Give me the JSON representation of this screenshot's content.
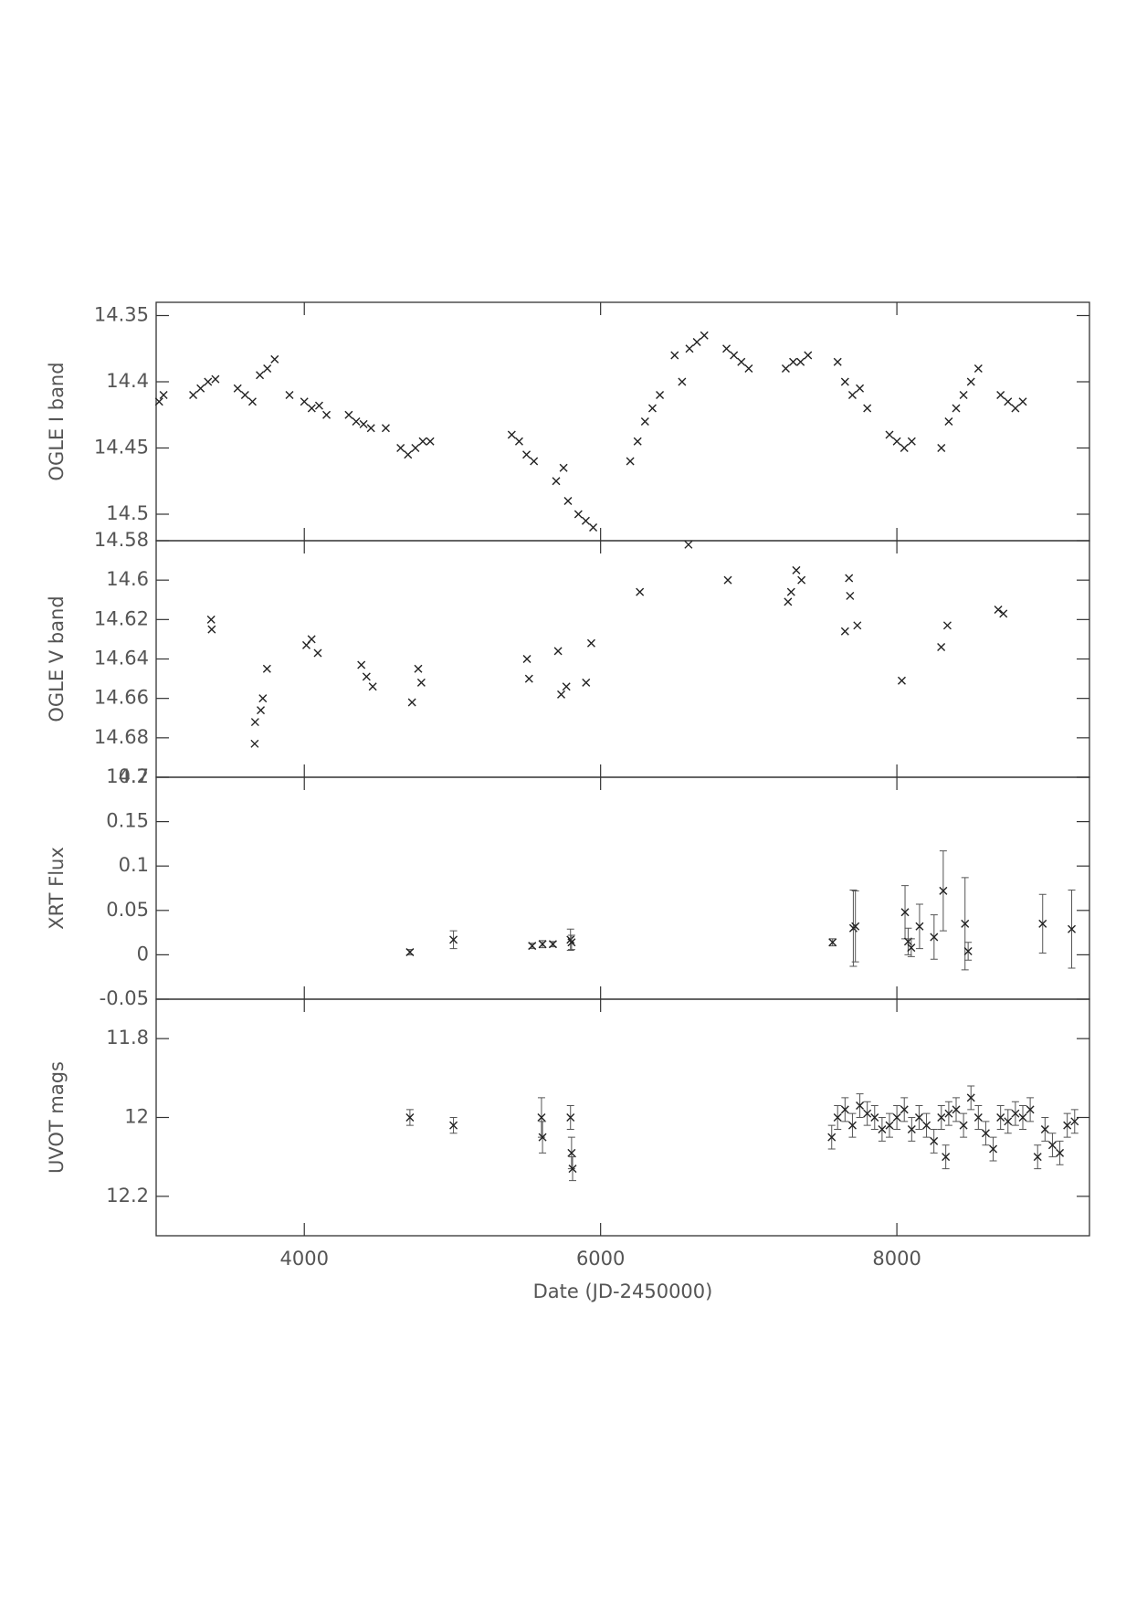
{
  "chart_data": [
    {
      "type": "scatter",
      "ylabel": "OGLE I band",
      "color": "#222",
      "invert_y": true,
      "xlim": [
        3000,
        9300
      ],
      "xticks": [
        4000,
        6000,
        8000
      ],
      "ylim": [
        14.34,
        14.52
      ],
      "yticks": [
        14.35,
        14.4,
        14.45,
        14.5
      ],
      "x": [
        3020,
        3050,
        3250,
        3300,
        3350,
        3400,
        3550,
        3600,
        3650,
        3700,
        3750,
        3800,
        3900,
        4000,
        4050,
        4100,
        4150,
        4300,
        4350,
        4400,
        4450,
        4550,
        4650,
        4700,
        4750,
        4800,
        4850,
        5400,
        5450,
        5500,
        5550,
        5700,
        5750,
        5780,
        5850,
        5900,
        5950,
        6200,
        6250,
        6300,
        6350,
        6400,
        6500,
        6550,
        6600,
        6650,
        6700,
        6850,
        6900,
        6950,
        7000,
        7250,
        7300,
        7350,
        7400,
        7600,
        7650,
        7700,
        7750,
        7800,
        7950,
        8000,
        8050,
        8100,
        8300,
        8350,
        8400,
        8450,
        8500,
        8550,
        8700,
        8750,
        8800,
        8850
      ],
      "values": [
        14.415,
        14.41,
        14.41,
        14.405,
        14.4,
        14.398,
        14.405,
        14.41,
        14.415,
        14.395,
        14.39,
        14.383,
        14.41,
        14.415,
        14.42,
        14.418,
        14.425,
        14.425,
        14.43,
        14.432,
        14.435,
        14.435,
        14.45,
        14.455,
        14.45,
        14.445,
        14.445,
        14.44,
        14.445,
        14.455,
        14.46,
        14.475,
        14.465,
        14.49,
        14.5,
        14.505,
        14.51,
        14.46,
        14.445,
        14.43,
        14.42,
        14.41,
        14.38,
        14.4,
        14.375,
        14.37,
        14.365,
        14.375,
        14.38,
        14.385,
        14.39,
        14.39,
        14.385,
        14.385,
        14.38,
        14.385,
        14.4,
        14.41,
        14.405,
        14.42,
        14.44,
        14.445,
        14.45,
        14.445,
        14.45,
        14.43,
        14.42,
        14.41,
        14.4,
        14.39,
        14.41,
        14.415,
        14.42,
        14.415
      ]
    },
    {
      "type": "scatter",
      "ylabel": "OGLE V band",
      "color": "#222",
      "invert_y": true,
      "xlim": [
        3000,
        9300
      ],
      "xticks": [
        4000,
        6000,
        8000
      ],
      "ylim": [
        14.58,
        14.7
      ],
      "yticks": [
        14.58,
        14.6,
        14.62,
        14.64,
        14.66,
        14.68,
        14.7
      ],
      "x": [
        3371,
        3375,
        3665,
        3668,
        3706,
        3720,
        3748,
        4014,
        4049,
        4091,
        4385,
        4420,
        4462,
        4727,
        4769,
        4790,
        5503,
        5517,
        5713,
        5734,
        5769,
        5902,
        5937,
        6265,
        6593,
        6859,
        7265,
        7286,
        7321,
        7356,
        7650,
        7677,
        7684,
        7733,
        8033,
        8299,
        8341,
        8684,
        8719
      ],
      "values": [
        14.62,
        14.625,
        14.683,
        14.672,
        14.666,
        14.66,
        14.645,
        14.633,
        14.63,
        14.637,
        14.643,
        14.649,
        14.654,
        14.662,
        14.645,
        14.652,
        14.64,
        14.65,
        14.636,
        14.658,
        14.654,
        14.652,
        14.632,
        14.606,
        14.582,
        14.6,
        14.611,
        14.606,
        14.595,
        14.6,
        14.626,
        14.599,
        14.608,
        14.623,
        14.651,
        14.634,
        14.623,
        14.615,
        14.617
      ]
    },
    {
      "type": "errorbar",
      "ylabel": "XRT Flux",
      "color": "#222",
      "xlim": [
        3000,
        9300
      ],
      "xticks": [
        4000,
        6000,
        8000
      ],
      "ylim": [
        -0.05,
        0.2
      ],
      "yticks": [
        -0.05,
        0,
        0.05,
        0.1,
        0.15,
        0.2
      ],
      "x": [
        4713,
        5007,
        5538,
        5608,
        5678,
        5797,
        5804,
        7566,
        7706,
        7720,
        8055,
        8076,
        8097,
        8153,
        8251,
        8313,
        8460,
        8481,
        8984,
        9180
      ],
      "values": [
        0.003,
        0.017,
        0.01,
        0.012,
        0.012,
        0.017,
        0.014,
        0.014,
        0.03,
        0.032,
        0.048,
        0.015,
        0.008,
        0.032,
        0.02,
        0.072,
        0.035,
        0.004,
        0.035,
        0.029
      ],
      "errors": [
        0.003,
        0.01,
        0.003,
        0.004,
        0.003,
        0.012,
        0.008,
        0.004,
        0.043,
        0.04,
        0.03,
        0.015,
        0.01,
        0.025,
        0.025,
        0.045,
        0.052,
        0.01,
        0.033,
        0.044
      ]
    },
    {
      "type": "errorbar",
      "ylabel": "UVOT mags",
      "xlabel": "Date (JD-2450000)",
      "color": "#222",
      "invert_y": true,
      "xlim": [
        3000,
        9300
      ],
      "xticks": [
        4000,
        6000,
        8000
      ],
      "ylim": [
        11.7,
        12.3
      ],
      "yticks": [
        11.8,
        12,
        12.2
      ],
      "x": [
        4713,
        5007,
        5601,
        5608,
        5797,
        5804,
        5811,
        7560,
        7600,
        7650,
        7700,
        7750,
        7800,
        7850,
        7900,
        7950,
        8000,
        8050,
        8100,
        8150,
        8200,
        8250,
        8300,
        8330,
        8350,
        8400,
        8450,
        8500,
        8550,
        8600,
        8650,
        8700,
        8750,
        8800,
        8850,
        8900,
        8950,
        9000,
        9050,
        9100,
        9150,
        9200
      ],
      "values": [
        12,
        12.02,
        12,
        12.05,
        12,
        12.09,
        12.13,
        12.05,
        12,
        11.98,
        12.02,
        11.97,
        11.99,
        12,
        12.03,
        12.02,
        12,
        11.98,
        12.03,
        12,
        12.02,
        12.06,
        12,
        12.1,
        11.99,
        11.98,
        12.02,
        11.95,
        12,
        12.04,
        12.08,
        12,
        12.01,
        11.99,
        12,
        11.98,
        12.1,
        12.03,
        12.07,
        12.09,
        12.02,
        12.01
      ],
      "errors": [
        0.02,
        0.02,
        0.05,
        0.04,
        0.03,
        0.04,
        0.03,
        0.03,
        0.03,
        0.03,
        0.03,
        0.03,
        0.03,
        0.03,
        0.03,
        0.03,
        0.03,
        0.03,
        0.03,
        0.03,
        0.03,
        0.03,
        0.03,
        0.03,
        0.03,
        0.03,
        0.03,
        0.03,
        0.03,
        0.03,
        0.03,
        0.03,
        0.03,
        0.03,
        0.03,
        0.03,
        0.03,
        0.03,
        0.03,
        0.03,
        0.03,
        0.03
      ]
    }
  ]
}
